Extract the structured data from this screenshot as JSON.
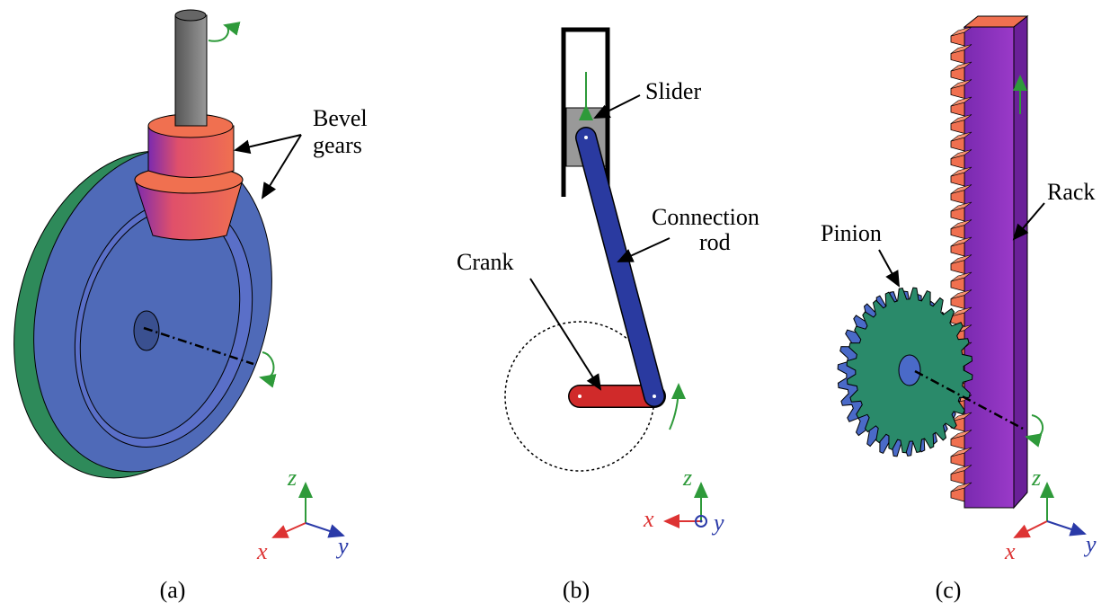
{
  "panels": [
    {
      "caption": "(a)",
      "labels": [
        {
          "lines": [
            "Bevel",
            "gears"
          ]
        }
      ],
      "axes": {
        "x": "x",
        "y": "y",
        "z": "z"
      }
    },
    {
      "caption": "(b)",
      "labels": [
        {
          "lines": [
            "Slider"
          ]
        },
        {
          "lines": [
            "Connection",
            "rod"
          ]
        },
        {
          "lines": [
            "Crank"
          ]
        }
      ],
      "axes": {
        "x": "x",
        "y": "y",
        "z": "z"
      }
    },
    {
      "caption": "(c)",
      "labels": [
        {
          "lines": [
            "Rack"
          ]
        },
        {
          "lines": [
            "Pinion"
          ]
        }
      ],
      "axes": {
        "x": "x",
        "y": "y",
        "z": "z"
      }
    }
  ]
}
